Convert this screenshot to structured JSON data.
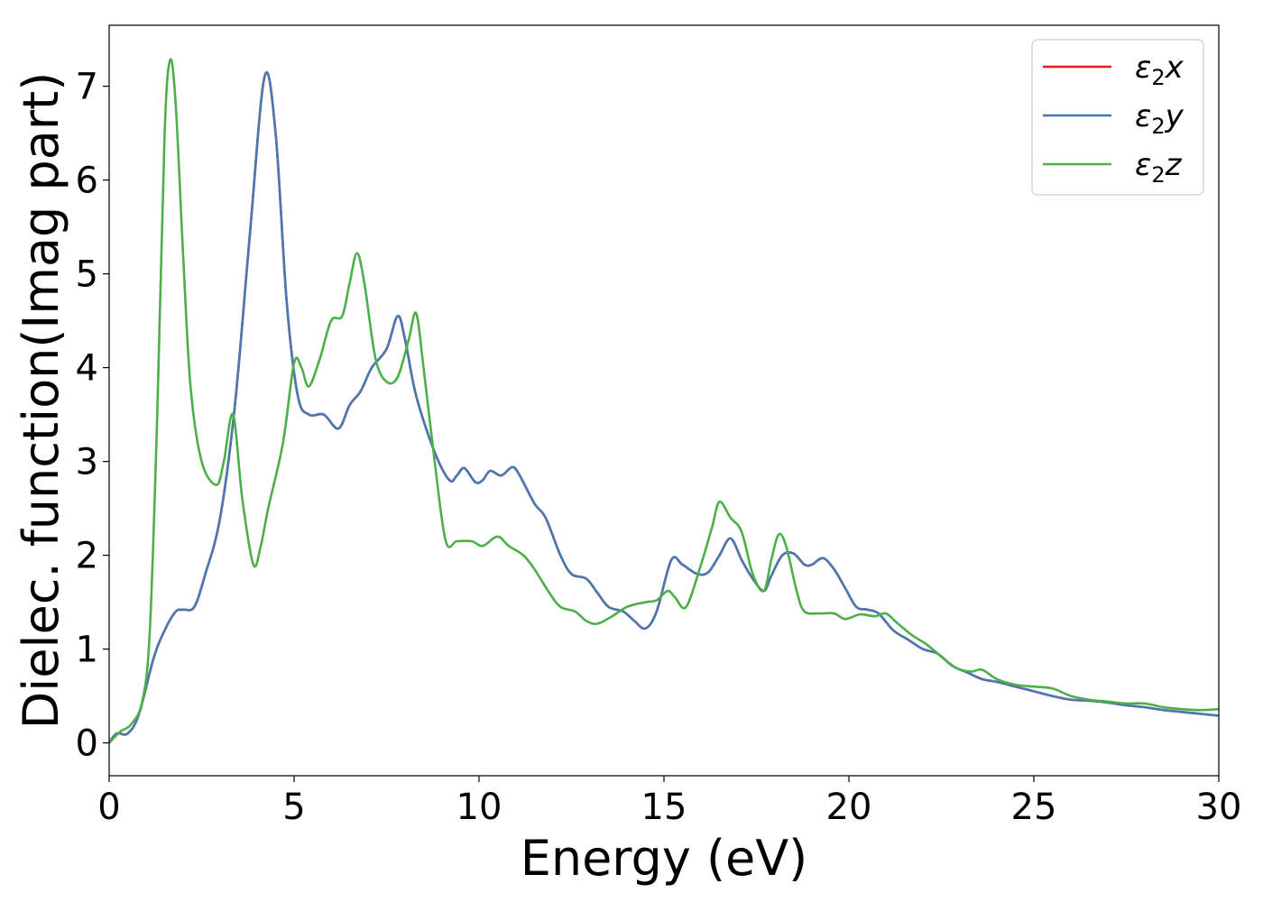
{
  "chart_data": {
    "type": "line",
    "title": "",
    "xlabel": "Energy (eV)",
    "ylabel": "Dielec. function(Imag part)",
    "xlim": [
      0,
      30
    ],
    "ylim": [
      -0.35,
      7.65
    ],
    "xticks": [
      0,
      5,
      10,
      15,
      20,
      25,
      30
    ],
    "yticks": [
      0,
      1,
      2,
      3,
      4,
      5,
      6,
      7
    ],
    "grid": false,
    "legend_position": "top-right",
    "series": [
      {
        "name": "ε₂x",
        "legend_base": "ε",
        "legend_sub": "2",
        "legend_var": "x",
        "color": "#e41a1c",
        "points": [
          [
            0,
            0
          ],
          [
            0.2,
            0.1
          ],
          [
            0.5,
            0.1
          ],
          [
            0.8,
            0.3
          ],
          [
            1.2,
            0.9
          ],
          [
            1.5,
            1.2
          ],
          [
            1.8,
            1.4
          ],
          [
            2.0,
            1.42
          ],
          [
            2.3,
            1.45
          ],
          [
            2.6,
            1.8
          ],
          [
            3.0,
            2.4
          ],
          [
            3.4,
            3.6
          ],
          [
            3.8,
            5.4
          ],
          [
            4.2,
            7.1
          ],
          [
            4.5,
            6.5
          ],
          [
            4.8,
            4.7
          ],
          [
            5.1,
            3.7
          ],
          [
            5.4,
            3.5
          ],
          [
            5.8,
            3.5
          ],
          [
            6.2,
            3.35
          ],
          [
            6.5,
            3.6
          ],
          [
            6.8,
            3.75
          ],
          [
            7.1,
            4.0
          ],
          [
            7.5,
            4.2
          ],
          [
            7.8,
            4.55
          ],
          [
            8.0,
            4.3
          ],
          [
            8.3,
            3.7
          ],
          [
            8.8,
            3.1
          ],
          [
            9.2,
            2.8
          ],
          [
            9.4,
            2.85
          ],
          [
            9.6,
            2.93
          ],
          [
            9.9,
            2.78
          ],
          [
            10.1,
            2.8
          ],
          [
            10.3,
            2.9
          ],
          [
            10.6,
            2.85
          ],
          [
            10.9,
            2.94
          ],
          [
            11.1,
            2.85
          ],
          [
            11.5,
            2.55
          ],
          [
            11.8,
            2.4
          ],
          [
            12.2,
            2.0
          ],
          [
            12.5,
            1.8
          ],
          [
            12.9,
            1.75
          ],
          [
            13.2,
            1.6
          ],
          [
            13.5,
            1.45
          ],
          [
            13.9,
            1.4
          ],
          [
            14.2,
            1.3
          ],
          [
            14.5,
            1.22
          ],
          [
            14.8,
            1.4
          ],
          [
            15.2,
            1.95
          ],
          [
            15.5,
            1.9
          ],
          [
            15.9,
            1.8
          ],
          [
            16.2,
            1.82
          ],
          [
            16.5,
            2.0
          ],
          [
            16.8,
            2.18
          ],
          [
            17.1,
            1.95
          ],
          [
            17.4,
            1.75
          ],
          [
            17.7,
            1.62
          ],
          [
            17.9,
            1.78
          ],
          [
            18.2,
            2.0
          ],
          [
            18.5,
            2.02
          ],
          [
            18.8,
            1.9
          ],
          [
            19.0,
            1.9
          ],
          [
            19.3,
            1.97
          ],
          [
            19.6,
            1.85
          ],
          [
            19.9,
            1.65
          ],
          [
            20.2,
            1.45
          ],
          [
            20.5,
            1.42
          ],
          [
            20.8,
            1.38
          ],
          [
            21.2,
            1.2
          ],
          [
            21.6,
            1.1
          ],
          [
            22.0,
            1.0
          ],
          [
            22.4,
            0.95
          ],
          [
            22.8,
            0.82
          ],
          [
            23.2,
            0.75
          ],
          [
            23.6,
            0.68
          ],
          [
            24.0,
            0.65
          ],
          [
            24.5,
            0.6
          ],
          [
            25.0,
            0.55
          ],
          [
            25.5,
            0.5
          ],
          [
            26.0,
            0.46
          ],
          [
            26.5,
            0.45
          ],
          [
            27.0,
            0.43
          ],
          [
            27.5,
            0.4
          ],
          [
            28.0,
            0.38
          ],
          [
            28.5,
            0.35
          ],
          [
            29.0,
            0.33
          ],
          [
            29.5,
            0.31
          ],
          [
            30.0,
            0.29
          ]
        ]
      },
      {
        "name": "ε₂y",
        "legend_base": "ε",
        "legend_sub": "2",
        "legend_var": "y",
        "color": "#4a78b0",
        "points": [
          [
            0,
            0
          ],
          [
            0.2,
            0.1
          ],
          [
            0.5,
            0.1
          ],
          [
            0.8,
            0.3
          ],
          [
            1.2,
            0.9
          ],
          [
            1.5,
            1.2
          ],
          [
            1.8,
            1.4
          ],
          [
            2.0,
            1.42
          ],
          [
            2.3,
            1.45
          ],
          [
            2.6,
            1.8
          ],
          [
            3.0,
            2.4
          ],
          [
            3.4,
            3.6
          ],
          [
            3.8,
            5.4
          ],
          [
            4.2,
            7.1
          ],
          [
            4.5,
            6.5
          ],
          [
            4.8,
            4.7
          ],
          [
            5.1,
            3.7
          ],
          [
            5.4,
            3.5
          ],
          [
            5.8,
            3.5
          ],
          [
            6.2,
            3.35
          ],
          [
            6.5,
            3.6
          ],
          [
            6.8,
            3.75
          ],
          [
            7.1,
            4.0
          ],
          [
            7.5,
            4.2
          ],
          [
            7.8,
            4.55
          ],
          [
            8.0,
            4.3
          ],
          [
            8.3,
            3.7
          ],
          [
            8.8,
            3.1
          ],
          [
            9.2,
            2.8
          ],
          [
            9.4,
            2.85
          ],
          [
            9.6,
            2.93
          ],
          [
            9.9,
            2.78
          ],
          [
            10.1,
            2.8
          ],
          [
            10.3,
            2.9
          ],
          [
            10.6,
            2.85
          ],
          [
            10.9,
            2.94
          ],
          [
            11.1,
            2.85
          ],
          [
            11.5,
            2.55
          ],
          [
            11.8,
            2.4
          ],
          [
            12.2,
            2.0
          ],
          [
            12.5,
            1.8
          ],
          [
            12.9,
            1.75
          ],
          [
            13.2,
            1.6
          ],
          [
            13.5,
            1.45
          ],
          [
            13.9,
            1.4
          ],
          [
            14.2,
            1.3
          ],
          [
            14.5,
            1.22
          ],
          [
            14.8,
            1.4
          ],
          [
            15.2,
            1.95
          ],
          [
            15.5,
            1.9
          ],
          [
            15.9,
            1.8
          ],
          [
            16.2,
            1.82
          ],
          [
            16.5,
            2.0
          ],
          [
            16.8,
            2.18
          ],
          [
            17.1,
            1.95
          ],
          [
            17.4,
            1.75
          ],
          [
            17.7,
            1.62
          ],
          [
            17.9,
            1.78
          ],
          [
            18.2,
            2.0
          ],
          [
            18.5,
            2.02
          ],
          [
            18.8,
            1.9
          ],
          [
            19.0,
            1.9
          ],
          [
            19.3,
            1.97
          ],
          [
            19.6,
            1.85
          ],
          [
            19.9,
            1.65
          ],
          [
            20.2,
            1.45
          ],
          [
            20.5,
            1.42
          ],
          [
            20.8,
            1.38
          ],
          [
            21.2,
            1.2
          ],
          [
            21.6,
            1.1
          ],
          [
            22.0,
            1.0
          ],
          [
            22.4,
            0.95
          ],
          [
            22.8,
            0.82
          ],
          [
            23.2,
            0.75
          ],
          [
            23.6,
            0.68
          ],
          [
            24.0,
            0.65
          ],
          [
            24.5,
            0.6
          ],
          [
            25.0,
            0.55
          ],
          [
            25.5,
            0.5
          ],
          [
            26.0,
            0.46
          ],
          [
            26.5,
            0.45
          ],
          [
            27.0,
            0.43
          ],
          [
            27.5,
            0.4
          ],
          [
            28.0,
            0.38
          ],
          [
            28.5,
            0.35
          ],
          [
            29.0,
            0.33
          ],
          [
            29.5,
            0.31
          ],
          [
            30.0,
            0.29
          ]
        ]
      },
      {
        "name": "ε₂z",
        "legend_base": "ε",
        "legend_sub": "2",
        "legend_var": "z",
        "color": "#4daf4a",
        "points": [
          [
            0,
            0
          ],
          [
            0.3,
            0.12
          ],
          [
            0.6,
            0.2
          ],
          [
            0.9,
            0.45
          ],
          [
            1.1,
            1.2
          ],
          [
            1.3,
            3.5
          ],
          [
            1.5,
            6.5
          ],
          [
            1.65,
            7.28
          ],
          [
            1.8,
            6.8
          ],
          [
            2.0,
            5.2
          ],
          [
            2.2,
            3.8
          ],
          [
            2.5,
            3.0
          ],
          [
            2.9,
            2.75
          ],
          [
            3.1,
            3.0
          ],
          [
            3.35,
            3.5
          ],
          [
            3.6,
            2.6
          ],
          [
            3.9,
            1.9
          ],
          [
            4.1,
            2.1
          ],
          [
            4.3,
            2.5
          ],
          [
            4.7,
            3.2
          ],
          [
            5.0,
            4.05
          ],
          [
            5.2,
            4.0
          ],
          [
            5.4,
            3.8
          ],
          [
            5.7,
            4.1
          ],
          [
            6.0,
            4.5
          ],
          [
            6.3,
            4.55
          ],
          [
            6.5,
            4.9
          ],
          [
            6.7,
            5.22
          ],
          [
            6.9,
            4.9
          ],
          [
            7.2,
            4.1
          ],
          [
            7.5,
            3.85
          ],
          [
            7.8,
            3.9
          ],
          [
            8.1,
            4.3
          ],
          [
            8.3,
            4.58
          ],
          [
            8.5,
            4.0
          ],
          [
            8.8,
            3.0
          ],
          [
            9.1,
            2.15
          ],
          [
            9.4,
            2.15
          ],
          [
            9.8,
            2.15
          ],
          [
            10.1,
            2.1
          ],
          [
            10.5,
            2.2
          ],
          [
            10.8,
            2.1
          ],
          [
            11.2,
            2.0
          ],
          [
            11.5,
            1.85
          ],
          [
            11.9,
            1.6
          ],
          [
            12.2,
            1.45
          ],
          [
            12.6,
            1.4
          ],
          [
            12.9,
            1.3
          ],
          [
            13.2,
            1.27
          ],
          [
            13.6,
            1.35
          ],
          [
            14.0,
            1.45
          ],
          [
            14.5,
            1.5
          ],
          [
            14.8,
            1.52
          ],
          [
            15.1,
            1.62
          ],
          [
            15.3,
            1.55
          ],
          [
            15.6,
            1.45
          ],
          [
            16.0,
            1.9
          ],
          [
            16.3,
            2.3
          ],
          [
            16.5,
            2.57
          ],
          [
            16.8,
            2.4
          ],
          [
            17.1,
            2.25
          ],
          [
            17.4,
            1.8
          ],
          [
            17.7,
            1.62
          ],
          [
            17.9,
            1.95
          ],
          [
            18.1,
            2.22
          ],
          [
            18.3,
            2.1
          ],
          [
            18.6,
            1.6
          ],
          [
            18.8,
            1.4
          ],
          [
            19.2,
            1.38
          ],
          [
            19.6,
            1.38
          ],
          [
            19.9,
            1.32
          ],
          [
            20.3,
            1.37
          ],
          [
            20.7,
            1.35
          ],
          [
            21.0,
            1.38
          ],
          [
            21.3,
            1.28
          ],
          [
            21.7,
            1.15
          ],
          [
            22.1,
            1.05
          ],
          [
            22.5,
            0.92
          ],
          [
            22.9,
            0.8
          ],
          [
            23.3,
            0.76
          ],
          [
            23.6,
            0.78
          ],
          [
            24.0,
            0.68
          ],
          [
            24.5,
            0.62
          ],
          [
            25.0,
            0.6
          ],
          [
            25.5,
            0.58
          ],
          [
            26.0,
            0.5
          ],
          [
            26.5,
            0.46
          ],
          [
            27.0,
            0.44
          ],
          [
            27.5,
            0.42
          ],
          [
            28.0,
            0.42
          ],
          [
            28.5,
            0.38
          ],
          [
            29.0,
            0.36
          ],
          [
            29.5,
            0.35
          ],
          [
            30.0,
            0.36
          ]
        ]
      }
    ]
  }
}
